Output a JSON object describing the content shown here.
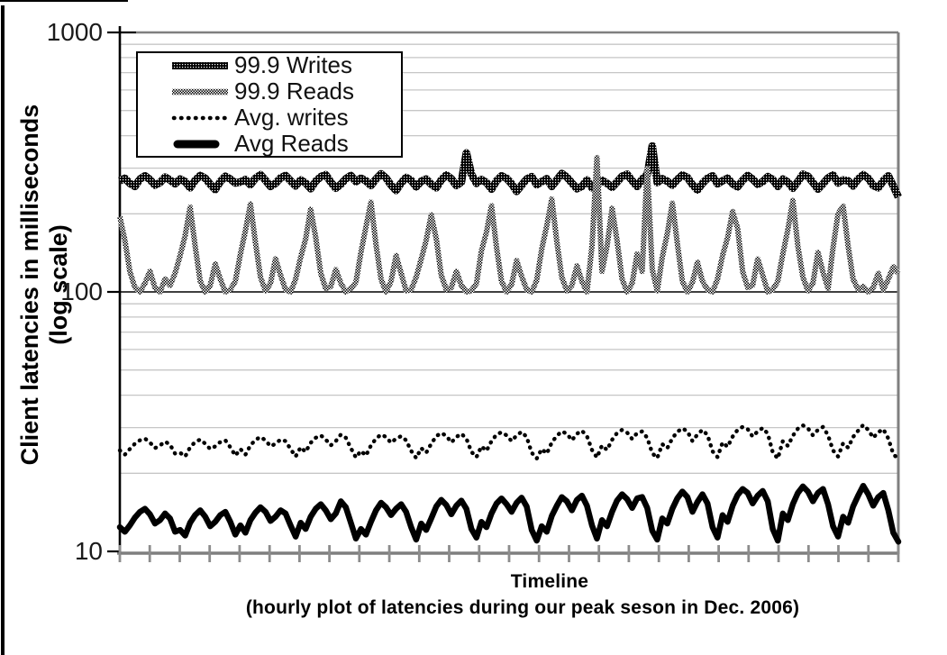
{
  "figure_title": "Client latency chart (hourly latencies, Dec. 2006 peak season)",
  "colors": {
    "background": "#ffffff",
    "axis_gray": "#7f7f7f",
    "tick_gray": "#8c8c8c",
    "grid_gray": "#c6c6c6",
    "line_black": "#000000"
  },
  "y_axis": {
    "title_line1": "Client latencies in milliseconds",
    "title_line2": "(log scale)",
    "tick_labels": [
      "1000",
      "100",
      "10"
    ]
  },
  "x_axis": {
    "title": "Timeline",
    "subtitle": "(hourly plot of latencies during our peak seson in Dec. 2006)"
  },
  "chart_data": {
    "type": "line",
    "title": "",
    "xlabel": "Timeline (hourly plot of latencies during our peak seson in Dec. 2006)",
    "ylabel": "Client latencies in milliseconds (log scale)",
    "y_scale": "log",
    "ylim": [
      10,
      1000
    ],
    "y_ticks": [
      10,
      100,
      1000
    ],
    "y_minor_gridlines": [
      20,
      30,
      40,
      50,
      60,
      70,
      80,
      90,
      200,
      300,
      400,
      500,
      600,
      700,
      800,
      900
    ],
    "grid": "horizontal",
    "legend_position": "top-left-inside",
    "x_start_hour": 0,
    "x_step_hours": 2,
    "x_tick_count": 27,
    "series": [
      {
        "name": "99.9 Writes",
        "style": "thick-dark-dither",
        "values": [
          268,
          274,
          262,
          255,
          272,
          280,
          271,
          258,
          264,
          277,
          270,
          261,
          272,
          266,
          252,
          269,
          281,
          274,
          260,
          248,
          266,
          279,
          272,
          263,
          265,
          271,
          259,
          274,
          283,
          269,
          255,
          262,
          275,
          281,
          268,
          256,
          270,
          263,
          250,
          267,
          278,
          283,
          265,
          251,
          260,
          273,
          281,
          266,
          274,
          268,
          257,
          272,
          285,
          275,
          258,
          246,
          263,
          276,
          269,
          254,
          267,
          272,
          260,
          252,
          270,
          282,
          273,
          257,
          265,
          343,
          284,
          262,
          271,
          264,
          249,
          268,
          280,
          274,
          261,
          244,
          258,
          272,
          278,
          259,
          266,
          273,
          255,
          270,
          286,
          277,
          263,
          250,
          255,
          270,
          252,
          257,
          269,
          262,
          253,
          265,
          279,
          284,
          268,
          255,
          272,
          283,
          365,
          264,
          273,
          267,
          258,
          271,
          282,
          276,
          259,
          247,
          262,
          274,
          280,
          261,
          268,
          274,
          261,
          254,
          269,
          281,
          272,
          260,
          266,
          278,
          271,
          255,
          272,
          265,
          251,
          266,
          284,
          279,
          264,
          249,
          261,
          275,
          282,
          263,
          270,
          268,
          256,
          272,
          283,
          274,
          257,
          252,
          268,
          280,
          256,
          232
        ]
      },
      {
        "name": "99.9 Reads",
        "style": "medium-light-dither",
        "values": [
          195,
          158,
          120,
          104,
          100,
          108,
          120,
          104,
          100,
          112,
          106,
          118,
          138,
          165,
          212,
          150,
          110,
          100,
          106,
          128,
          112,
          100,
          102,
          110,
          140,
          172,
          218,
          155,
          114,
          101,
          108,
          134,
          116,
          102,
          100,
          112,
          136,
          160,
          208,
          162,
          118,
          103,
          105,
          122,
          108,
          100,
          103,
          109,
          142,
          178,
          222,
          152,
          112,
          100,
          110,
          138,
          118,
          101,
          102,
          114,
          134,
          158,
          198,
          160,
          116,
          102,
          104,
          120,
          106,
          100,
          101,
          108,
          144,
          170,
          215,
          148,
          110,
          100,
          107,
          132,
          115,
          102,
          100,
          111,
          146,
          180,
          228,
          156,
          114,
          101,
          106,
          126,
          110,
          100,
          150,
          330,
          120,
          150,
          210,
          158,
          112,
          100,
          108,
          140,
          120,
          300,
          122,
          101,
          136,
          168,
          220,
          154,
          110,
          100,
          109,
          130,
          110,
          102,
          100,
          112,
          138,
          162,
          204,
          176,
          120,
          104,
          106,
          134,
          116,
          100,
          102,
          110,
          140,
          174,
          225,
          150,
          114,
          101,
          108,
          142,
          119,
          103,
          148,
          200,
          214,
          150,
          112,
          102,
          105,
          100,
          104,
          118,
          102,
          112,
          125,
          118
        ]
      },
      {
        "name": "Avg. writes",
        "style": "dotted",
        "values": [
          24.5,
          23.6,
          24.8,
          26.0,
          26.8,
          27.2,
          26.3,
          25.0,
          25.6,
          26.5,
          25.8,
          23.8,
          24.0,
          23.2,
          25.2,
          26.4,
          27.0,
          26.0,
          24.8,
          25.4,
          26.4,
          26.8,
          25.2,
          23.4,
          24.8,
          23.6,
          25.6,
          26.9,
          27.6,
          26.8,
          25.4,
          26.0,
          27.0,
          26.6,
          24.8,
          23.2,
          25.2,
          24.2,
          26.2,
          27.4,
          28.0,
          27.0,
          25.6,
          26.6,
          28.2,
          27.4,
          25.0,
          23.0,
          24.4,
          23.4,
          25.6,
          27.2,
          28.2,
          27.6,
          26.2,
          27.2,
          27.8,
          26.8,
          24.4,
          22.9,
          25.0,
          24.0,
          26.0,
          27.8,
          28.6,
          27.9,
          26.3,
          27.6,
          28.4,
          27.2,
          24.2,
          23.1,
          25.4,
          24.4,
          26.6,
          28.2,
          28.8,
          28.0,
          26.6,
          28.0,
          28.9,
          27.6,
          24.0,
          22.8,
          24.8,
          23.8,
          26.3,
          27.9,
          29.0,
          28.4,
          26.8,
          28.4,
          29.2,
          27.8,
          24.6,
          23.0,
          25.6,
          24.6,
          26.9,
          28.6,
          29.4,
          28.7,
          27.1,
          28.6,
          29.0,
          27.4,
          23.9,
          22.9,
          25.9,
          25.0,
          27.3,
          28.9,
          29.8,
          29.0,
          26.6,
          28.2,
          29.4,
          28.1,
          24.3,
          23.1,
          26.3,
          25.3,
          27.7,
          29.4,
          30.2,
          29.6,
          27.7,
          29.0,
          29.9,
          28.4,
          24.1,
          22.8,
          26.6,
          25.5,
          27.9,
          29.7,
          30.6,
          29.8,
          28.0,
          29.4,
          30.2,
          28.0,
          24.5,
          23.2,
          26.1,
          25.1,
          27.6,
          29.2,
          30.7,
          29.4,
          27.4,
          28.8,
          29.6,
          27.2,
          23.7,
          22.7
        ]
      },
      {
        "name": "Avg Reads",
        "style": "thick-solid",
        "values": [
          12.4,
          11.9,
          12.6,
          13.5,
          14.2,
          14.6,
          13.9,
          12.8,
          13.2,
          14.0,
          13.4,
          11.9,
          12.1,
          11.5,
          12.9,
          13.8,
          14.4,
          13.6,
          12.5,
          13.0,
          13.8,
          14.2,
          13.0,
          11.6,
          12.6,
          11.8,
          13.2,
          14.1,
          14.8,
          14.2,
          13.1,
          13.6,
          14.4,
          14.0,
          12.6,
          11.4,
          12.9,
          12.2,
          13.6,
          14.6,
          15.2,
          14.4,
          13.3,
          14.0,
          15.6,
          14.8,
          12.9,
          11.2,
          12.2,
          11.6,
          13.0,
          14.4,
          15.4,
          14.8,
          13.8,
          14.6,
          15.2,
          14.2,
          12.4,
          11.1,
          12.8,
          12.1,
          13.4,
          14.9,
          15.8,
          15.1,
          13.9,
          15.0,
          15.7,
          14.6,
          12.2,
          11.3,
          13.0,
          12.4,
          14.0,
          15.3,
          16.0,
          15.2,
          14.2,
          15.4,
          16.1,
          14.9,
          12.1,
          11.0,
          12.5,
          11.9,
          13.7,
          15.0,
          16.2,
          15.6,
          14.4,
          15.8,
          16.4,
          15.0,
          12.6,
          11.2,
          13.2,
          12.5,
          14.2,
          15.7,
          16.6,
          15.9,
          14.7,
          16.0,
          16.2,
          14.7,
          12.0,
          11.1,
          13.4,
          12.8,
          14.6,
          16.0,
          17.0,
          16.2,
          14.2,
          15.5,
          16.6,
          15.3,
          12.4,
          11.3,
          13.8,
          13.0,
          15.0,
          16.5,
          17.4,
          16.8,
          15.3,
          16.4,
          17.1,
          15.6,
          12.2,
          11.0,
          14.0,
          13.2,
          15.2,
          16.8,
          17.8,
          17.0,
          15.6,
          16.8,
          17.4,
          15.2,
          12.5,
          11.4,
          13.6,
          12.9,
          14.9,
          16.4,
          17.9,
          16.6,
          15.0,
          16.2,
          16.8,
          14.4,
          11.8,
          10.9
        ]
      }
    ]
  }
}
